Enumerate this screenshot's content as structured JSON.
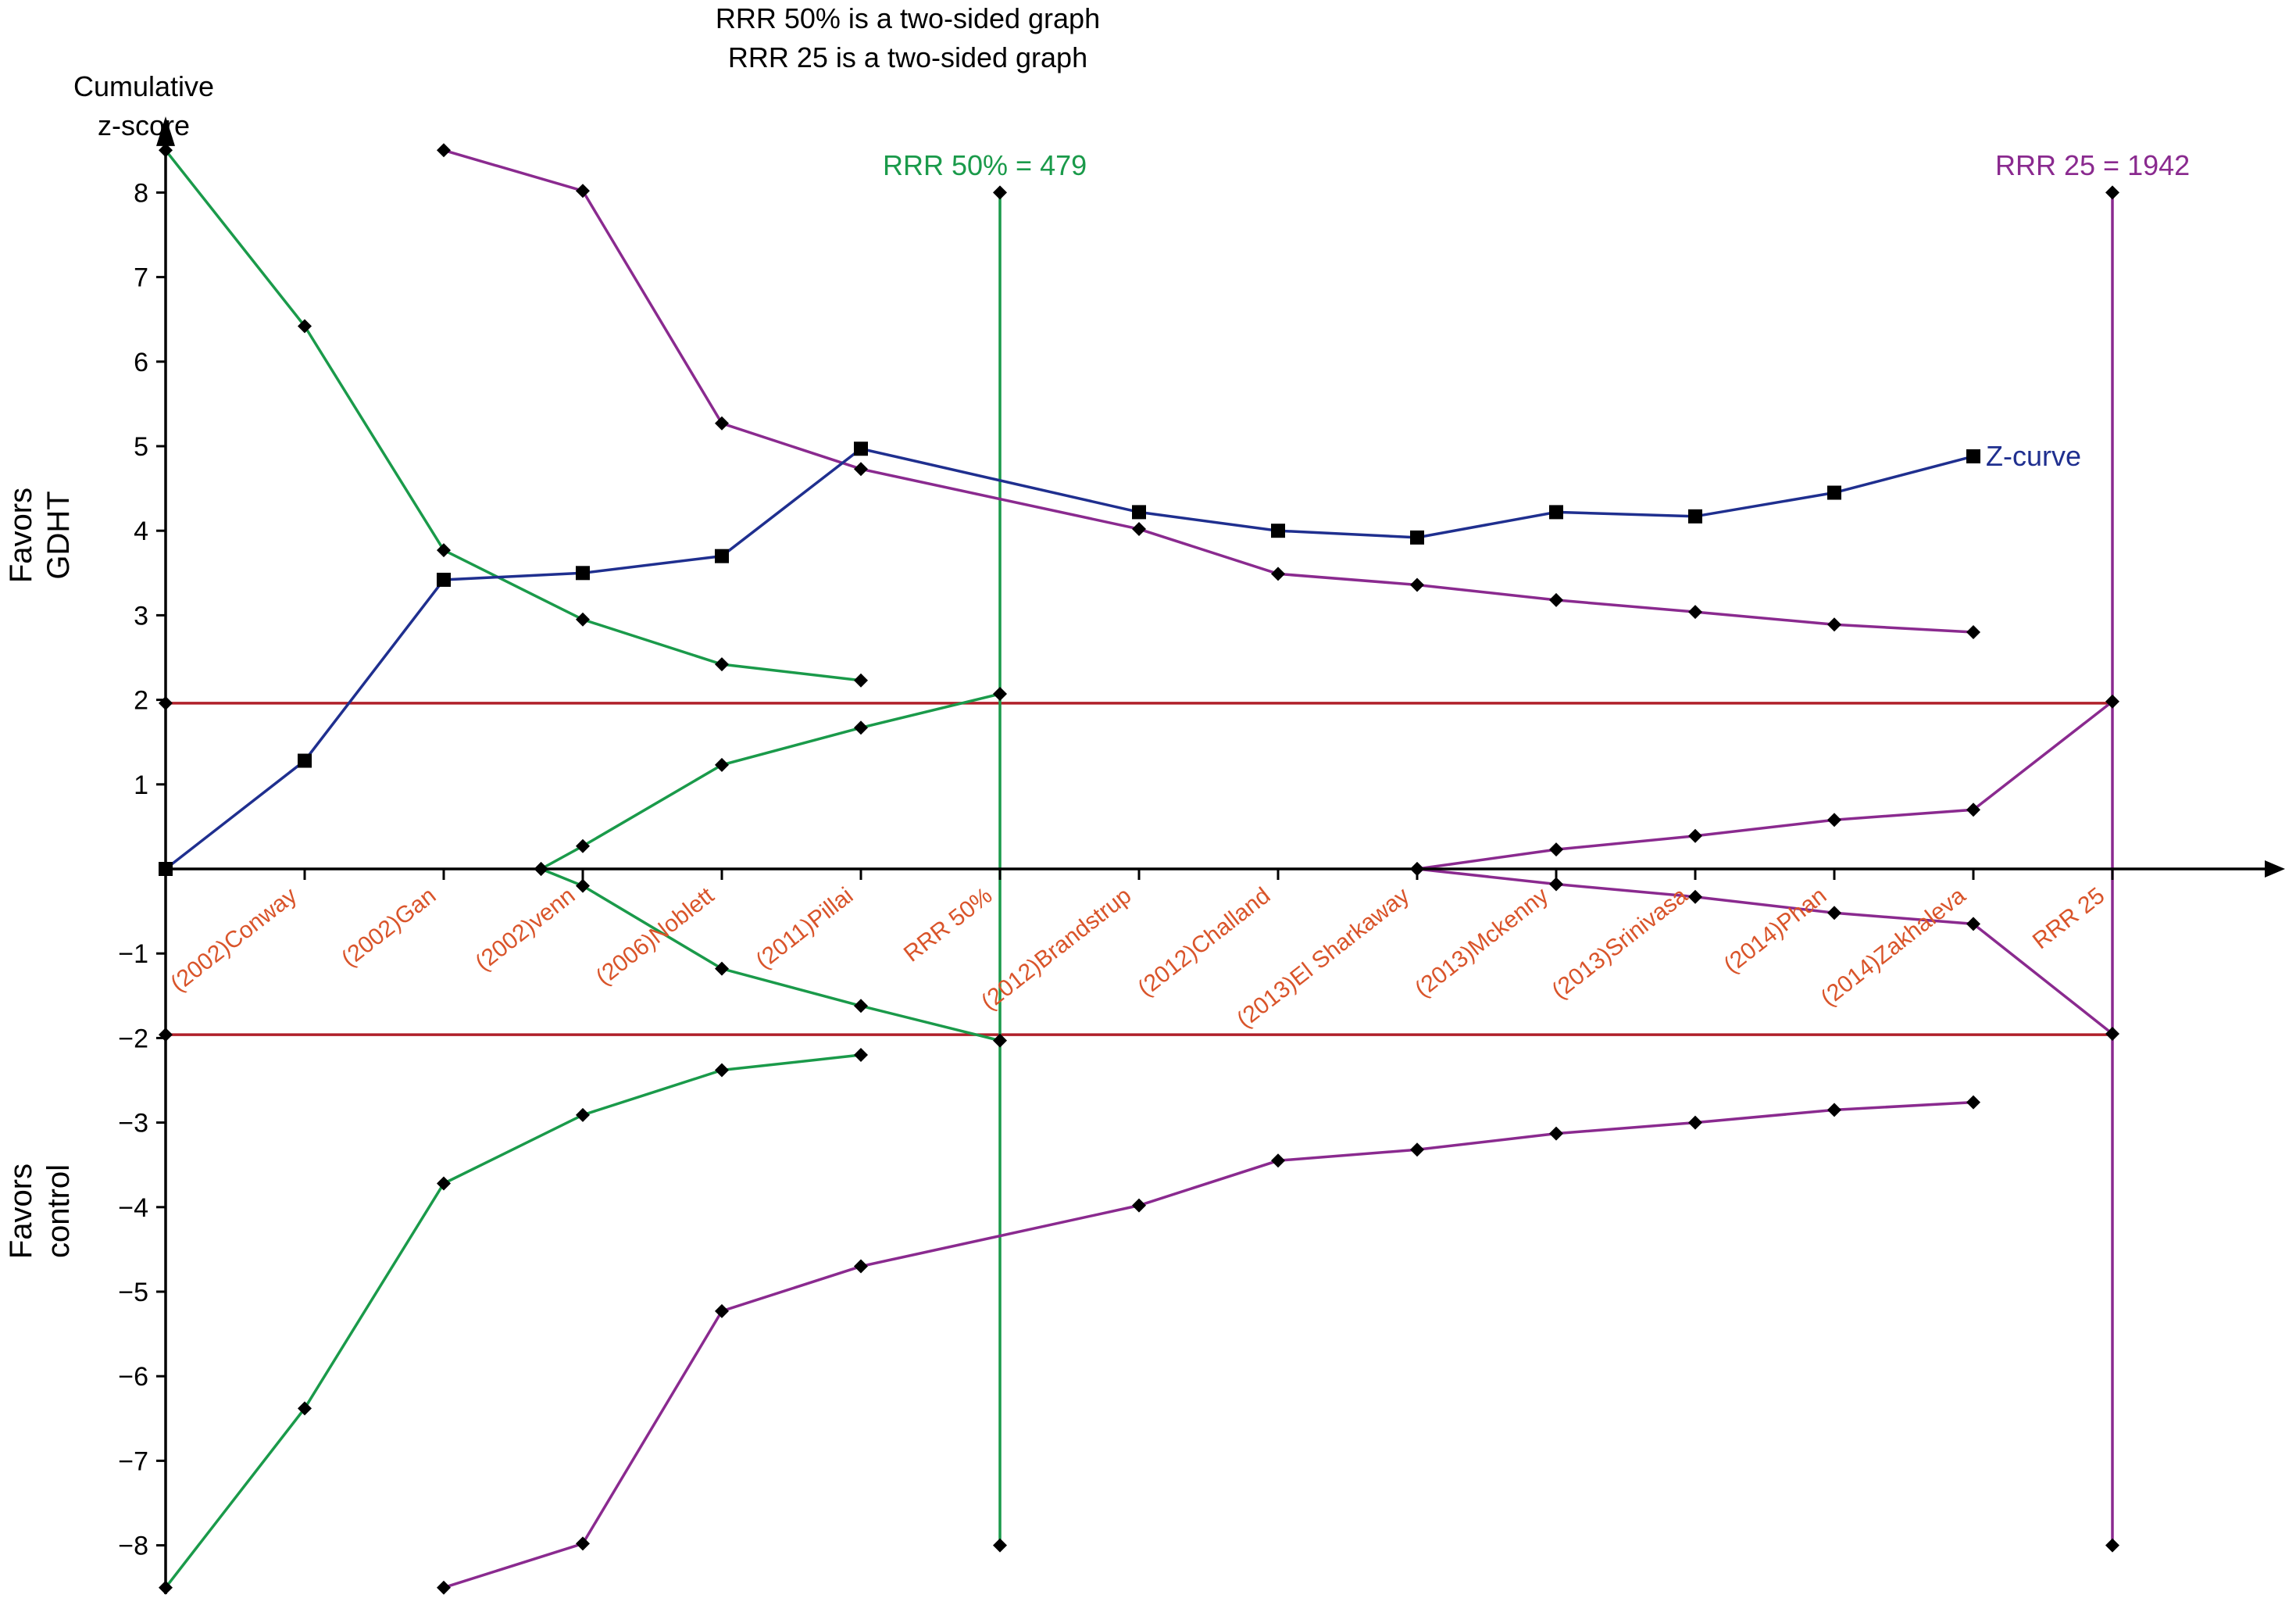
{
  "chart_data": {
    "type": "line",
    "titles": [
      "RRR 50% is a two-sided graph",
      "RRR 25 is a two-sided graph"
    ],
    "ylabel": [
      "Cumulative",
      "z-score"
    ],
    "side_labels": {
      "top": [
        "Favors",
        "GDHT"
      ],
      "bottom": [
        "Favors",
        "control"
      ]
    },
    "ylim": [
      -8,
      8
    ],
    "yticks": [
      -8,
      -7,
      -6,
      -5,
      -4,
      -3,
      -2,
      -1,
      1,
      2,
      3,
      4,
      5,
      6,
      7,
      8
    ],
    "ytick_labels": [
      "−8",
      "−7",
      "−6",
      "−5",
      "−4",
      "−3",
      "−2",
      "−1",
      "1",
      "2",
      "3",
      "4",
      "5",
      "6",
      "7",
      "8"
    ],
    "x_positions": [
      0,
      1,
      2,
      3,
      4,
      5,
      6,
      7,
      8,
      9,
      10,
      11,
      12,
      13,
      14
    ],
    "categories": [
      "(2002)Conway",
      "(2002)Gan",
      "(2002)venn",
      "(2006)Noblett",
      "(2011)Pillai",
      "RRR 50%",
      "(2012)Brandstrup",
      "(2012)Challand",
      "(2013)El Sharkaway",
      "(2013)Mckenny",
      "(2013)Srinivasa",
      "(2014)Phan",
      "(2014)Zakhaleva",
      "RRR 25"
    ],
    "category_positions": [
      1,
      2,
      3,
      4,
      5,
      6,
      7,
      8,
      9,
      10,
      11,
      12,
      13,
      14
    ],
    "conventional_boundaries": [
      1.96,
      -1.96
    ],
    "z_curve": {
      "name": "Z-curve",
      "x": [
        0,
        1,
        2,
        3,
        4,
        5,
        7,
        8,
        9,
        10,
        11,
        12,
        13
      ],
      "y": [
        0,
        1.28,
        3.42,
        3.5,
        3.7,
        4.97,
        4.22,
        4.0,
        3.92,
        4.22,
        4.17,
        4.45,
        4.88
      ]
    },
    "rrr50": {
      "label": "RRR 50% = 479",
      "x_line": 6,
      "upper_monitoring": {
        "x": [
          0,
          1,
          2,
          3,
          4,
          5
        ],
        "y": [
          8.5,
          6.42,
          3.77,
          2.95,
          2.42,
          2.23
        ]
      },
      "lower_monitoring": {
        "x": [
          0,
          1,
          2,
          3,
          4,
          5
        ],
        "y": [
          -8.5,
          -6.38,
          -3.72,
          -2.91,
          -2.38,
          -2.2
        ]
      },
      "upper_futility": {
        "x": [
          2.7,
          3,
          4,
          5,
          6
        ],
        "y": [
          0,
          0.27,
          1.23,
          1.67,
          2.07
        ]
      },
      "lower_futility": {
        "x": [
          2.7,
          3,
          4,
          5,
          6
        ],
        "y": [
          0,
          -0.2,
          -1.18,
          -1.62,
          -2.03
        ]
      }
    },
    "rrr25": {
      "label": "RRR 25 = 1942",
      "x_line": 14,
      "upper_monitoring": {
        "x": [
          2,
          3,
          4,
          5,
          7,
          8,
          9,
          10,
          11,
          12,
          13
        ],
        "y": [
          8.5,
          8.02,
          5.27,
          4.73,
          4.02,
          3.49,
          3.36,
          3.18,
          3.04,
          2.89,
          2.8
        ]
      },
      "lower_monitoring": {
        "x": [
          2,
          3,
          4,
          5,
          7,
          8,
          9,
          10,
          11,
          12,
          13
        ],
        "y": [
          -8.5,
          -7.98,
          -5.23,
          -4.7,
          -3.98,
          -3.45,
          -3.32,
          -3.13,
          -3.0,
          -2.85,
          -2.76
        ]
      },
      "upper_futility": {
        "x": [
          9,
          10,
          11,
          12,
          13,
          14
        ],
        "y": [
          0,
          0.23,
          0.39,
          0.58,
          0.7,
          1.98
        ]
      },
      "lower_futility": {
        "x": [
          9,
          10,
          11,
          12,
          13,
          14
        ],
        "y": [
          0,
          -0.18,
          -0.33,
          -0.52,
          -0.65,
          -1.95
        ]
      }
    },
    "colors": {
      "z_curve": "#1f2f8f",
      "rrr50": "#1a9a4a",
      "rrr25": "#8a2a8f",
      "conventional": "#b0202a",
      "category_label": "#d9542a",
      "axis": "#000000"
    }
  }
}
